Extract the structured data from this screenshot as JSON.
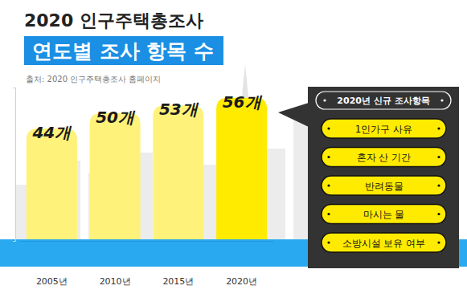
{
  "chart_data": {
    "type": "bar",
    "title": "2020 인구주택총조사",
    "subtitle": "연도별 조사 항목 수",
    "annotations": {
      "source": "출처: 2020 인구주택총조사 홈페이지",
      "panel_title": "2020년 신규 조사항목",
      "panel_items": [
        "1인가구 사유",
        "혼자 산 기간",
        "반려동물",
        "마시는 물",
        "소방시설 보유 여부"
      ]
    },
    "categories": [
      "2005년",
      "2010년",
      "2015년",
      "2020년"
    ],
    "values": [
      44,
      50,
      53,
      56
    ],
    "value_labels": [
      "44개",
      "50개",
      "53개",
      "56개"
    ],
    "colors": [
      "#fff27a",
      "#fff27a",
      "#fff27a",
      "#ffeb00"
    ],
    "ylim": [
      0,
      60
    ],
    "yticks": [
      0,
      60
    ],
    "data_labels": true,
    "tick_labels": "x",
    "grid": false
  }
}
